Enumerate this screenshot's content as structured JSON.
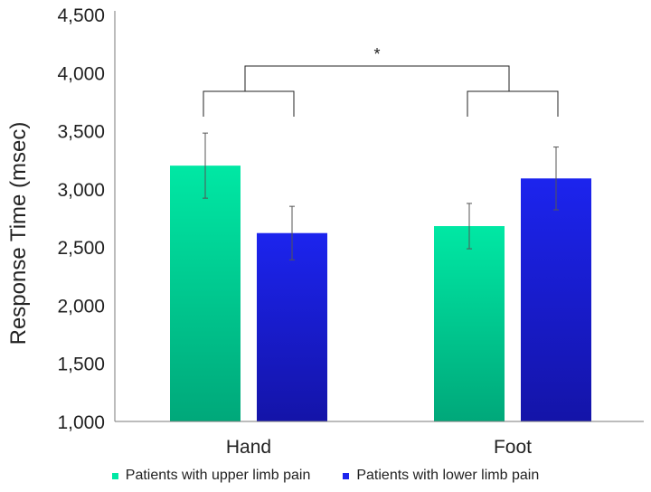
{
  "chart_data": {
    "type": "bar",
    "categories": [
      "Hand",
      "Foot"
    ],
    "series": [
      {
        "name": "Patients with upper limb pain",
        "values": [
          3200,
          2680
        ],
        "errors": [
          280,
          195
        ],
        "color_top": "#00e8a4",
        "color_bottom": "#00a87a"
      },
      {
        "name": "Patients with lower limb pain",
        "values": [
          2620,
          3090
        ],
        "errors": [
          230,
          270
        ],
        "color_top": "#1c24ee",
        "color_bottom": "#1414a8"
      }
    ],
    "ylabel": "Response Time (msec)",
    "xlabel": "",
    "ylim": [
      1000,
      4500
    ],
    "yticks": [
      "1,000",
      "1,500",
      "2,000",
      "2,500",
      "3,000",
      "3,500",
      "4,000",
      "4,500"
    ],
    "ytick_values": [
      1000,
      1500,
      2000,
      2500,
      3000,
      3500,
      4000,
      4500
    ],
    "significance": {
      "label": "*",
      "between": [
        "Hand",
        "Foot"
      ]
    },
    "grid": false,
    "legend_position": "bottom"
  }
}
